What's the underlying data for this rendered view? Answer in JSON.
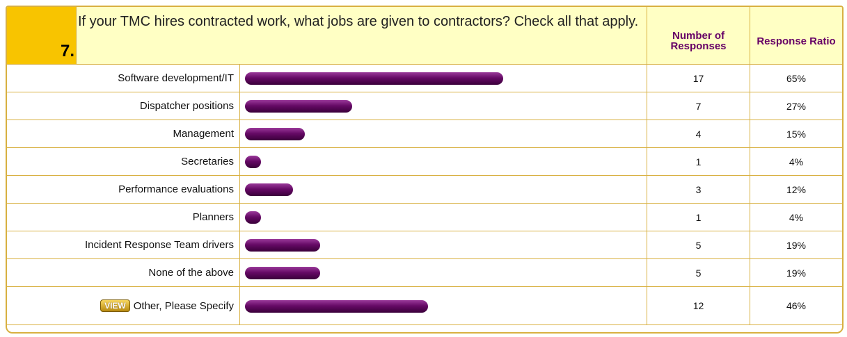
{
  "chart_data": {
    "type": "bar",
    "question_number": "7.",
    "title": "If your TMC hires contracted work, what jobs are given to contractors? Check all that apply.",
    "count_header": "Number of Responses",
    "ratio_header": "Response Ratio",
    "view_button": "VIEW",
    "color": "#660a66",
    "categories": [
      "Software development/IT",
      "Dispatcher positions",
      "Management",
      "Secretaries",
      "Performance evaluations",
      "Planners",
      "Incident Response Team drivers",
      "None of the above",
      "Other, Please Specify"
    ],
    "counts": [
      17,
      7,
      4,
      1,
      3,
      1,
      5,
      5,
      12
    ],
    "ratios": [
      65,
      27,
      15,
      4,
      12,
      4,
      19,
      19,
      46
    ],
    "ratio_labels": [
      "65%",
      "27%",
      "15%",
      "4%",
      "12%",
      "4%",
      "19%",
      "19%",
      "46%"
    ]
  }
}
